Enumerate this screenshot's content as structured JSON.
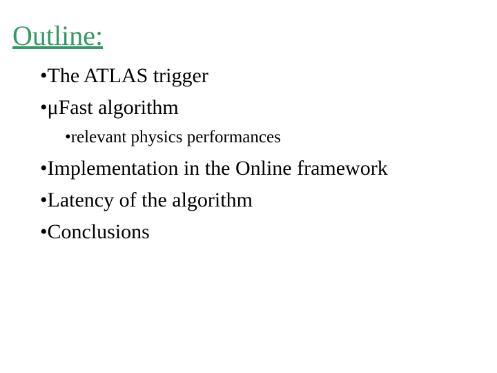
{
  "slide": {
    "title": "Outline:",
    "title_color": "#339966",
    "background": "#ffffff",
    "text_color": "#000000",
    "font_family": "Times New Roman",
    "title_fontsize": 40,
    "lvl1_fontsize": 30,
    "lvl2_fontsize": 25,
    "bullets": {
      "b1": {
        "marker": "•",
        "text": "The ATLAS trigger"
      },
      "b2": {
        "marker": "•",
        "mu": "μ",
        "text": "Fast algorithm"
      },
      "b2_1": {
        "marker": "•",
        "text": "relevant physics performances"
      },
      "b3": {
        "marker": "•",
        "text": "Implementation in the Online framework"
      },
      "b4": {
        "marker": "•",
        "text": "Latency of the algorithm"
      },
      "b5": {
        "marker": "•",
        "text": "Conclusions"
      }
    }
  }
}
